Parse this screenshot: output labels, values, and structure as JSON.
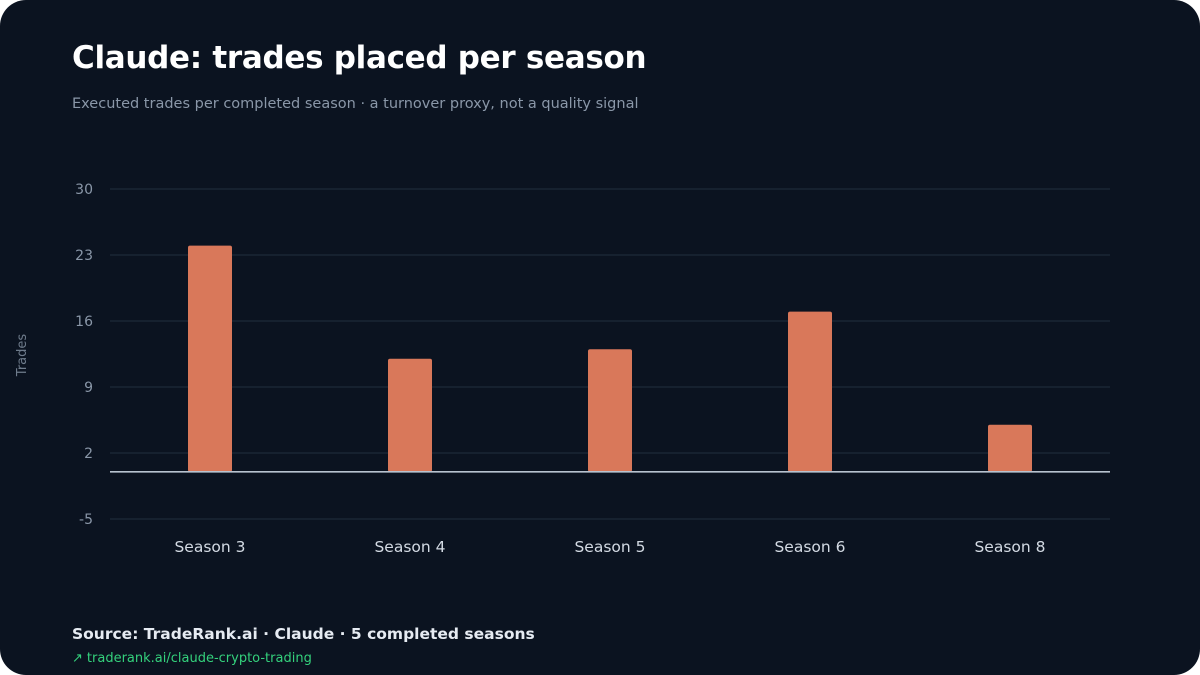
{
  "title": "Claude: trades placed per season",
  "subtitle": "Executed trades per completed season · a turnover proxy, not a quality signal",
  "source": "Source: TradeRank.ai · Claude · 5 completed seasons",
  "link": {
    "icon": "arrow-up-right-icon",
    "arrow": "↗",
    "text": "traderank.ai/claude-crypto-trading"
  },
  "colors": {
    "background": "#0b1320",
    "bar": "#d9785a",
    "grid": "#1c2a38",
    "zero_line": "#b8c3cf",
    "link": "#34d17c"
  },
  "chart_data": {
    "type": "bar",
    "categories": [
      "Season 3",
      "Season 4",
      "Season 5",
      "Season 6",
      "Season 8"
    ],
    "values": [
      24,
      12,
      13,
      17,
      5
    ],
    "ylabel": "Trades",
    "xlabel": "",
    "yticks": [
      30,
      23,
      16,
      9,
      2,
      -5
    ],
    "ylim": [
      -5,
      30
    ],
    "grid": true,
    "legend": "none"
  }
}
